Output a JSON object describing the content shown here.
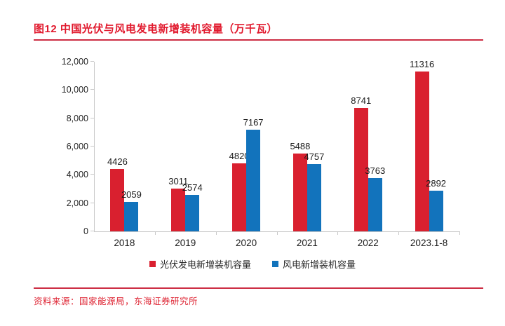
{
  "header": {
    "title": "图12  中国光伏与风电发电新增装机容量（万千瓦）"
  },
  "chart_data": {
    "type": "bar",
    "title": "图12  中国光伏与风电发电新增装机容量（万千瓦）",
    "categories": [
      "2018",
      "2019",
      "2020",
      "2021",
      "2022",
      "2023.1-8"
    ],
    "series": [
      {
        "name": "光伏发电新增装机容量",
        "color": "#D9202F",
        "values": [
          4426,
          3011,
          4820,
          5488,
          8741,
          11316
        ]
      },
      {
        "name": "风电新增装机容量",
        "color": "#1273BC",
        "values": [
          2059,
          2574,
          7167,
          4757,
          3763,
          2892
        ]
      }
    ],
    "xlabel": "",
    "ylabel": "",
    "ylim": [
      0,
      12000
    ],
    "ytick_step": 2000,
    "ytick_labels": [
      "0",
      "2,000",
      "4,000",
      "6,000",
      "8,000",
      "10,000",
      "12,000"
    ],
    "grid": false,
    "legend_position": "bottom"
  },
  "footer": {
    "source": "资料来源：国家能源局，东海证券研究所"
  },
  "colors": {
    "title_red": "#E1192D",
    "rule_red": "#CC2D43",
    "bar_red": "#D9202F",
    "bar_blue": "#1273BC",
    "axis_gray": "#C8C8C8",
    "label_black": "#1A1A1A"
  }
}
